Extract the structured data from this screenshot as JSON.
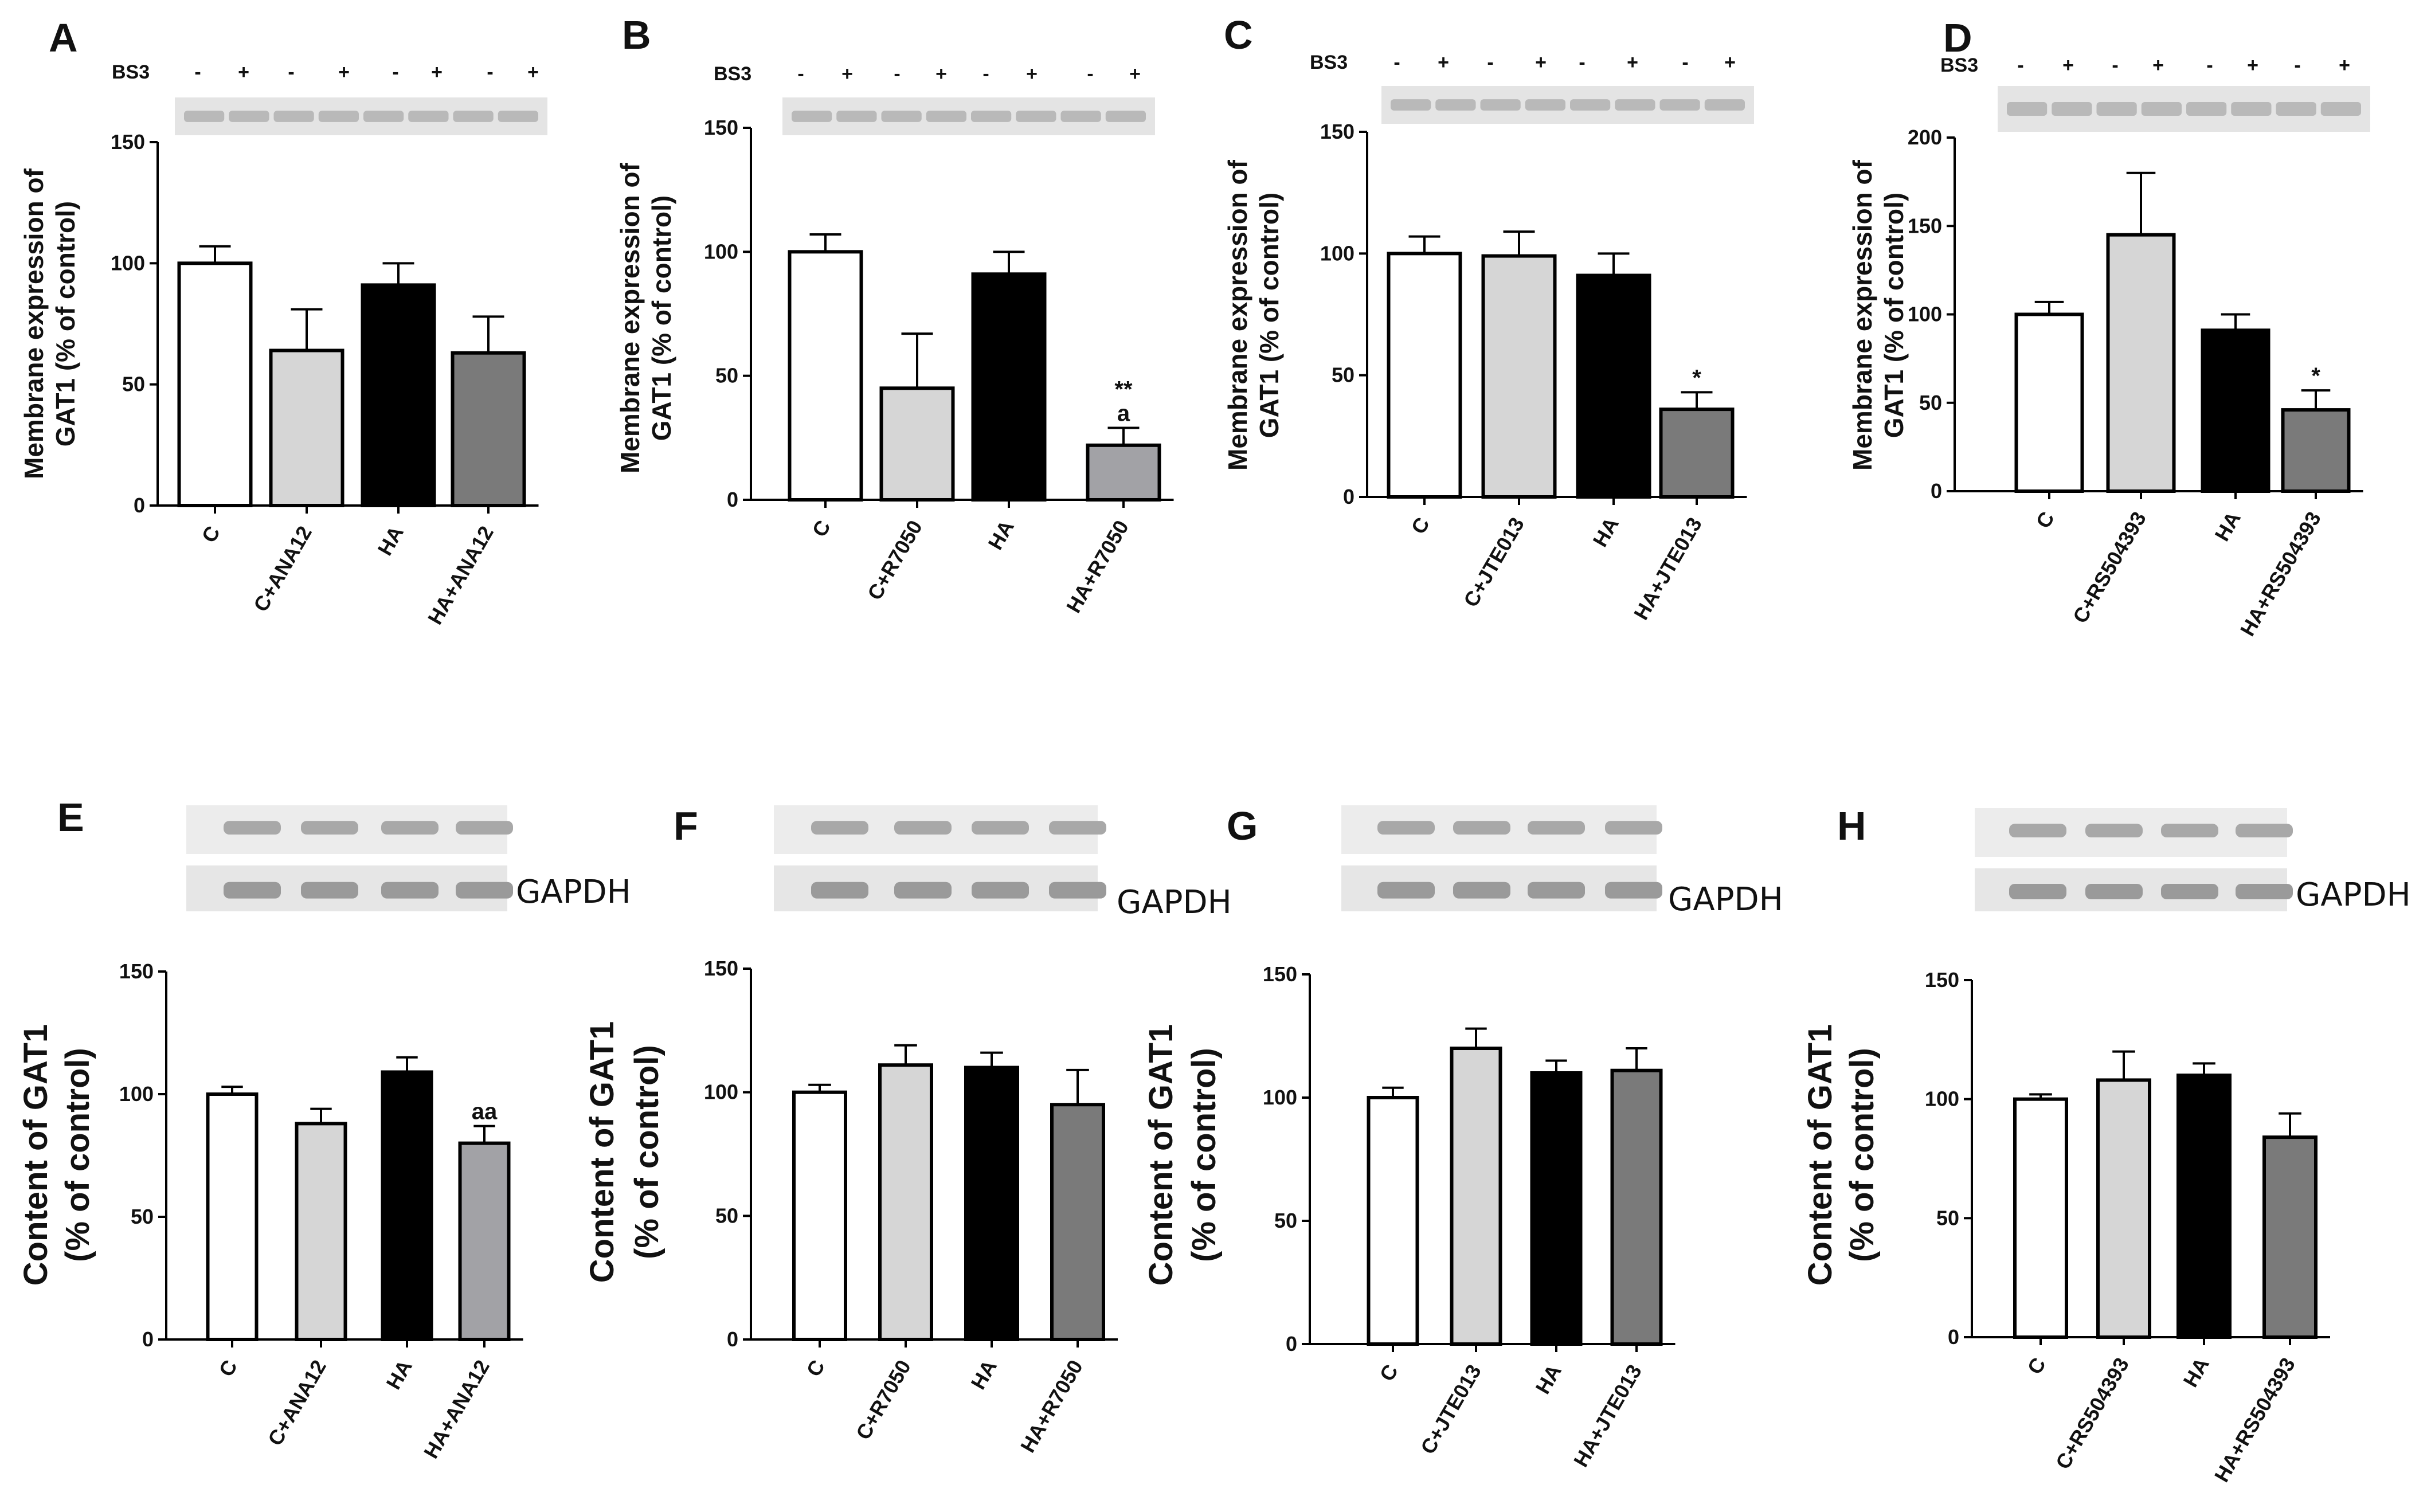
{
  "colors": {
    "C": "#ffffff",
    "C+drug": "#d6d6d6",
    "HA": "#000000",
    "HA+drug": "#7a7a7a",
    "HA+drug-light": "#a2a2a6",
    "axis": "#000000"
  },
  "chart_data": [
    {
      "panel": "A",
      "type": "bar",
      "categories": [
        "C",
        "C+ANA12",
        "HA",
        "HA+ANA12"
      ],
      "values": [
        100,
        64,
        91,
        63
      ],
      "errors": [
        7,
        17,
        9,
        15
      ],
      "annotations": [
        "",
        "",
        "",
        ""
      ],
      "ylabel": [
        "Membrane expression of",
        "GAT1 (% of control)"
      ],
      "ylim": [
        0,
        150
      ],
      "yticks": [
        "0",
        "50",
        "100",
        "150"
      ],
      "blot": {
        "label": "BS3",
        "signs": [
          "-",
          "+",
          "-",
          "+",
          "-",
          "+",
          "-",
          "+"
        ]
      }
    },
    {
      "panel": "B",
      "type": "bar",
      "categories": [
        "C",
        "C+R7050",
        "HA",
        "HA+R7050"
      ],
      "values": [
        100,
        45,
        91,
        22
      ],
      "errors": [
        7,
        22,
        9,
        7
      ],
      "annotations": [
        "",
        "",
        "",
        "**|a"
      ],
      "ylabel": [
        "Membrane expression of",
        "GAT1 (% of control)"
      ],
      "ylim": [
        0,
        150
      ],
      "yticks": [
        "0",
        "50",
        "100",
        "150"
      ],
      "blot": {
        "label": "BS3",
        "signs": [
          "-",
          "+",
          "-",
          "+",
          "-",
          "+",
          "-",
          "+"
        ]
      }
    },
    {
      "panel": "C",
      "type": "bar",
      "categories": [
        "C",
        "C+JTE013",
        "HA",
        "HA+JTE013"
      ],
      "values": [
        100,
        99,
        91,
        36
      ],
      "errors": [
        7,
        10,
        9,
        7
      ],
      "annotations": [
        "",
        "",
        "",
        "*"
      ],
      "ylabel": [
        "Membrane expression of",
        "GAT1 (% of control)"
      ],
      "ylim": [
        0,
        150
      ],
      "yticks": [
        "0",
        "50",
        "100",
        "150"
      ],
      "blot": {
        "label": "BS3",
        "signs": [
          "-",
          "+",
          "-",
          "+",
          "-",
          "+",
          "-",
          "+"
        ]
      }
    },
    {
      "panel": "D",
      "type": "bar",
      "categories": [
        "C",
        "C+RS504393",
        "HA",
        "HA+RS504393"
      ],
      "values": [
        100,
        145,
        91,
        46
      ],
      "errors": [
        7,
        35,
        9,
        11
      ],
      "annotations": [
        "",
        "",
        "",
        "*"
      ],
      "ylabel": [
        "Membrane expression of",
        "GAT1 (% of control)"
      ],
      "ylim": [
        0,
        200
      ],
      "yticks": [
        "0",
        "50",
        "100",
        "150",
        "200"
      ],
      "blot": {
        "label": "BS3",
        "signs": [
          "-",
          "+",
          "-",
          "+",
          "-",
          "+",
          "-",
          "+"
        ]
      }
    },
    {
      "panel": "E",
      "type": "bar",
      "categories": [
        "C",
        "C+ANA12",
        "HA",
        "HA+ANA12"
      ],
      "values": [
        100,
        88,
        109,
        80
      ],
      "errors": [
        3,
        6,
        6,
        7
      ],
      "annotations": [
        "",
        "",
        "",
        "aa"
      ],
      "ylabel": [
        "Content of GAT1",
        "(% of control)"
      ],
      "ylim": [
        0,
        150
      ],
      "yticks": [
        "0",
        "50",
        "100",
        "150"
      ],
      "blot": {
        "label": "GAPDH"
      }
    },
    {
      "panel": "F",
      "type": "bar",
      "categories": [
        "C",
        "C+R7050",
        "HA",
        "HA+R7050"
      ],
      "values": [
        100,
        111,
        110,
        95
      ],
      "errors": [
        3,
        8,
        6,
        14
      ],
      "annotations": [
        "",
        "",
        "",
        ""
      ],
      "ylabel": [
        "Content of GAT1",
        "(% of control)"
      ],
      "ylim": [
        0,
        150
      ],
      "yticks": [
        "0",
        "50",
        "100",
        "150"
      ],
      "blot": {
        "label": "GAPDH"
      }
    },
    {
      "panel": "G",
      "type": "bar",
      "categories": [
        "C",
        "C+JTE013",
        "HA",
        "HA+JTE013"
      ],
      "values": [
        100,
        120,
        110,
        111
      ],
      "errors": [
        4,
        8,
        5,
        9
      ],
      "annotations": [
        "",
        "",
        "",
        ""
      ],
      "ylabel": [
        "Content of GAT1",
        "(% of control)"
      ],
      "ylim": [
        0,
        150
      ],
      "yticks": [
        "0",
        "50",
        "100",
        "150"
      ],
      "blot": {
        "label": "GAPDH"
      }
    },
    {
      "panel": "H",
      "type": "bar",
      "categories": [
        "C",
        "C+RS504393",
        "HA",
        "HA+RS504393"
      ],
      "values": [
        100,
        108,
        110,
        84
      ],
      "errors": [
        2,
        12,
        5,
        10
      ],
      "annotations": [
        "",
        "",
        "",
        ""
      ],
      "ylabel": [
        "Content of GAT1",
        "(% of control)"
      ],
      "ylim": [
        0,
        150
      ],
      "yticks": [
        "0",
        "50",
        "100",
        "150"
      ],
      "blot": {
        "label": "GAPDH"
      }
    }
  ]
}
